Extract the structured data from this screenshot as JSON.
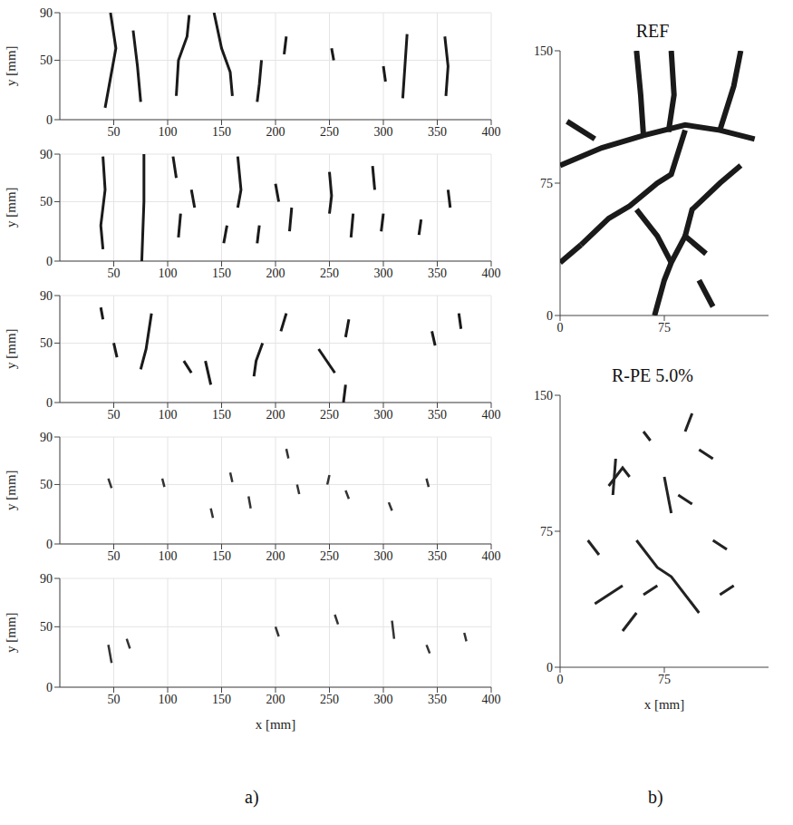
{
  "panel_labels": [
    "a)",
    "b)"
  ],
  "chart_data": [
    {
      "type": "line",
      "y_label": "y [mm]",
      "xlim": [
        0,
        400
      ],
      "ylim": [
        0,
        90
      ],
      "xticks": [
        50,
        100,
        150,
        200,
        250,
        300,
        350,
        400
      ],
      "yticks": [
        0,
        50,
        90
      ],
      "grid": true,
      "color": "#1a1a1a",
      "series": [
        {
          "x": [
            47,
            52,
            47,
            42
          ],
          "values": [
            90,
            60,
            35,
            10
          ]
        },
        {
          "x": [
            68,
            72,
            75
          ],
          "values": [
            75,
            45,
            15
          ]
        },
        {
          "x": [
            120,
            118,
            110,
            108
          ],
          "values": [
            88,
            70,
            50,
            20
          ]
        },
        {
          "x": [
            143,
            150,
            158,
            160
          ],
          "values": [
            90,
            60,
            40,
            20
          ]
        },
        {
          "x": [
            187,
            185,
            183
          ],
          "values": [
            50,
            30,
            15
          ]
        },
        {
          "x": [
            210,
            208
          ],
          "values": [
            70,
            55
          ]
        },
        {
          "x": [
            252,
            254
          ],
          "values": [
            60,
            50
          ]
        },
        {
          "x": [
            322,
            320,
            318
          ],
          "values": [
            72,
            45,
            18
          ]
        },
        {
          "x": [
            357,
            360,
            358
          ],
          "values": [
            70,
            45,
            20
          ]
        },
        {
          "x": [
            300,
            302
          ],
          "values": [
            45,
            32
          ]
        }
      ]
    },
    {
      "type": "line",
      "y_label": "y [mm]",
      "xlim": [
        0,
        400
      ],
      "ylim": [
        0,
        90
      ],
      "xticks": [
        50,
        100,
        150,
        200,
        250,
        300,
        350,
        400
      ],
      "yticks": [
        0,
        50,
        90
      ],
      "grid": true,
      "color": "#1a1a1a",
      "series": [
        {
          "x": [
            40,
            42,
            38,
            40
          ],
          "values": [
            88,
            60,
            30,
            10
          ]
        },
        {
          "x": [
            78,
            78,
            76
          ],
          "values": [
            90,
            50,
            0
          ]
        },
        {
          "x": [
            105,
            108
          ],
          "values": [
            88,
            70
          ]
        },
        {
          "x": [
            112,
            110
          ],
          "values": [
            40,
            20
          ]
        },
        {
          "x": [
            122,
            125
          ],
          "values": [
            60,
            45
          ]
        },
        {
          "x": [
            165,
            168,
            165
          ],
          "values": [
            88,
            60,
            45
          ]
        },
        {
          "x": [
            155,
            152
          ],
          "values": [
            30,
            15
          ]
        },
        {
          "x": [
            185,
            183
          ],
          "values": [
            30,
            15
          ]
        },
        {
          "x": [
            200,
            203
          ],
          "values": [
            65,
            50
          ]
        },
        {
          "x": [
            215,
            213
          ],
          "values": [
            45,
            25
          ]
        },
        {
          "x": [
            250,
            252,
            250
          ],
          "values": [
            75,
            55,
            40
          ]
        },
        {
          "x": [
            272,
            270
          ],
          "values": [
            40,
            20
          ]
        },
        {
          "x": [
            290,
            292
          ],
          "values": [
            80,
            60
          ]
        },
        {
          "x": [
            300,
            298
          ],
          "values": [
            40,
            25
          ]
        },
        {
          "x": [
            335,
            333
          ],
          "values": [
            35,
            22
          ]
        },
        {
          "x": [
            360,
            362
          ],
          "values": [
            60,
            45
          ]
        }
      ]
    },
    {
      "type": "line",
      "y_label": "y [mm]",
      "xlim": [
        0,
        400
      ],
      "ylim": [
        0,
        90
      ],
      "xticks": [
        50,
        100,
        150,
        200,
        250,
        300,
        350,
        400
      ],
      "yticks": [
        0,
        50,
        90
      ],
      "grid": true,
      "color": "#1a1a1a",
      "series": [
        {
          "x": [
            38,
            40
          ],
          "values": [
            80,
            70
          ]
        },
        {
          "x": [
            50,
            53
          ],
          "values": [
            50,
            38
          ]
        },
        {
          "x": [
            85,
            80,
            75
          ],
          "values": [
            75,
            45,
            28
          ]
        },
        {
          "x": [
            115,
            122
          ],
          "values": [
            35,
            25
          ]
        },
        {
          "x": [
            135,
            140
          ],
          "values": [
            35,
            15
          ]
        },
        {
          "x": [
            188,
            182,
            180
          ],
          "values": [
            50,
            35,
            22
          ]
        },
        {
          "x": [
            210,
            205
          ],
          "values": [
            75,
            60
          ]
        },
        {
          "x": [
            240,
            255
          ],
          "values": [
            45,
            25
          ]
        },
        {
          "x": [
            268,
            265
          ],
          "values": [
            70,
            55
          ]
        },
        {
          "x": [
            265,
            263
          ],
          "values": [
            15,
            0
          ]
        },
        {
          "x": [
            345,
            348
          ],
          "values": [
            60,
            48
          ]
        },
        {
          "x": [
            370,
            372
          ],
          "values": [
            75,
            62
          ]
        }
      ]
    },
    {
      "type": "line",
      "y_label": "y [mm]",
      "xlim": [
        0,
        400
      ],
      "ylim": [
        0,
        90
      ],
      "xticks": [
        50,
        100,
        150,
        200,
        250,
        300,
        350,
        400
      ],
      "yticks": [
        0,
        50,
        90
      ],
      "grid": true,
      "color": "#333333",
      "series": [
        {
          "x": [
            45,
            48
          ],
          "values": [
            55,
            47
          ]
        },
        {
          "x": [
            95,
            97
          ],
          "values": [
            55,
            48
          ]
        },
        {
          "x": [
            140,
            142
          ],
          "values": [
            30,
            22
          ]
        },
        {
          "x": [
            158,
            160
          ],
          "values": [
            60,
            52
          ]
        },
        {
          "x": [
            175,
            177
          ],
          "values": [
            40,
            30
          ]
        },
        {
          "x": [
            210,
            212
          ],
          "values": [
            80,
            72
          ]
        },
        {
          "x": [
            220,
            222
          ],
          "values": [
            50,
            42
          ]
        },
        {
          "x": [
            250,
            248
          ],
          "values": [
            58,
            50
          ]
        },
        {
          "x": [
            265,
            268
          ],
          "values": [
            45,
            38
          ]
        },
        {
          "x": [
            305,
            308
          ],
          "values": [
            35,
            28
          ]
        },
        {
          "x": [
            340,
            342
          ],
          "values": [
            55,
            48
          ]
        }
      ]
    },
    {
      "type": "line",
      "x_label": "x [mm]",
      "y_label": "y [mm]",
      "xlim": [
        0,
        400
      ],
      "ylim": [
        0,
        90
      ],
      "xticks": [
        50,
        100,
        150,
        200,
        250,
        300,
        350,
        400
      ],
      "yticks": [
        0,
        50,
        90
      ],
      "grid": true,
      "color": "#333333",
      "series": [
        {
          "x": [
            45,
            48
          ],
          "values": [
            35,
            20
          ]
        },
        {
          "x": [
            62,
            65
          ],
          "values": [
            40,
            32
          ]
        },
        {
          "x": [
            200,
            203
          ],
          "values": [
            50,
            42
          ]
        },
        {
          "x": [
            255,
            258
          ],
          "values": [
            60,
            52
          ]
        },
        {
          "x": [
            308,
            310
          ],
          "values": [
            55,
            40
          ]
        },
        {
          "x": [
            340,
            343
          ],
          "values": [
            35,
            28
          ]
        },
        {
          "x": [
            375,
            377
          ],
          "values": [
            45,
            38
          ]
        }
      ]
    },
    {
      "type": "line",
      "title": "REF",
      "xlim": [
        0,
        150
      ],
      "ylim": [
        0,
        150
      ],
      "xticks": [
        0,
        75
      ],
      "yticks": [
        0,
        75,
        150
      ],
      "grid": false,
      "color": "#1a1a1a",
      "series": [
        {
          "x": [
            0,
            30,
            60,
            90,
            115,
            140
          ],
          "values": [
            85,
            95,
            102,
            108,
            105,
            100
          ]
        },
        {
          "x": [
            55,
            58,
            60
          ],
          "values": [
            150,
            125,
            102
          ]
        },
        {
          "x": [
            80,
            82,
            78
          ],
          "values": [
            150,
            125,
            104
          ]
        },
        {
          "x": [
            15,
            35,
            50,
            70,
            80,
            90
          ],
          "values": [
            40,
            55,
            62,
            75,
            80,
            105
          ]
        },
        {
          "x": [
            68,
            75,
            80,
            90,
            105
          ],
          "values": [
            0,
            20,
            30,
            45,
            35
          ]
        },
        {
          "x": [
            80,
            70,
            55
          ],
          "values": [
            30,
            45,
            60
          ]
        },
        {
          "x": [
            90,
            95,
            115,
            130
          ],
          "values": [
            45,
            60,
            75,
            85
          ]
        },
        {
          "x": [
            115,
            125,
            130
          ],
          "values": [
            105,
            130,
            150
          ]
        },
        {
          "x": [
            5,
            25
          ],
          "values": [
            110,
            100
          ]
        },
        {
          "x": [
            0,
            15
          ],
          "values": [
            30,
            40
          ]
        },
        {
          "x": [
            100,
            110
          ],
          "values": [
            20,
            5
          ]
        }
      ]
    },
    {
      "type": "line",
      "title": "R-PE 5.0%",
      "x_label": "x [mm]",
      "xlim": [
        0,
        150
      ],
      "ylim": [
        0,
        150
      ],
      "xticks": [
        0,
        75
      ],
      "yticks": [
        0,
        75,
        150
      ],
      "grid": false,
      "color": "#222222",
      "series": [
        {
          "x": [
            35,
            45,
            50
          ],
          "values": [
            100,
            110,
            105
          ]
        },
        {
          "x": [
            40,
            38
          ],
          "values": [
            115,
            95
          ]
        },
        {
          "x": [
            55,
            70,
            80,
            95,
            100
          ],
          "values": [
            70,
            55,
            50,
            35,
            30
          ]
        },
        {
          "x": [
            60,
            70
          ],
          "values": [
            40,
            45
          ]
        },
        {
          "x": [
            25,
            45
          ],
          "values": [
            35,
            45
          ]
        },
        {
          "x": [
            75,
            80
          ],
          "values": [
            105,
            85
          ]
        },
        {
          "x": [
            85,
            95
          ],
          "values": [
            95,
            90
          ]
        },
        {
          "x": [
            100,
            110
          ],
          "values": [
            120,
            115
          ]
        },
        {
          "x": [
            20,
            28
          ],
          "values": [
            70,
            62
          ]
        },
        {
          "x": [
            60,
            65
          ],
          "values": [
            130,
            125
          ]
        },
        {
          "x": [
            110,
            120
          ],
          "values": [
            70,
            65
          ]
        },
        {
          "x": [
            45,
            55
          ],
          "values": [
            20,
            30
          ]
        },
        {
          "x": [
            90,
            95
          ],
          "values": [
            130,
            140
          ]
        },
        {
          "x": [
            115,
            125
          ],
          "values": [
            40,
            45
          ]
        }
      ]
    }
  ]
}
